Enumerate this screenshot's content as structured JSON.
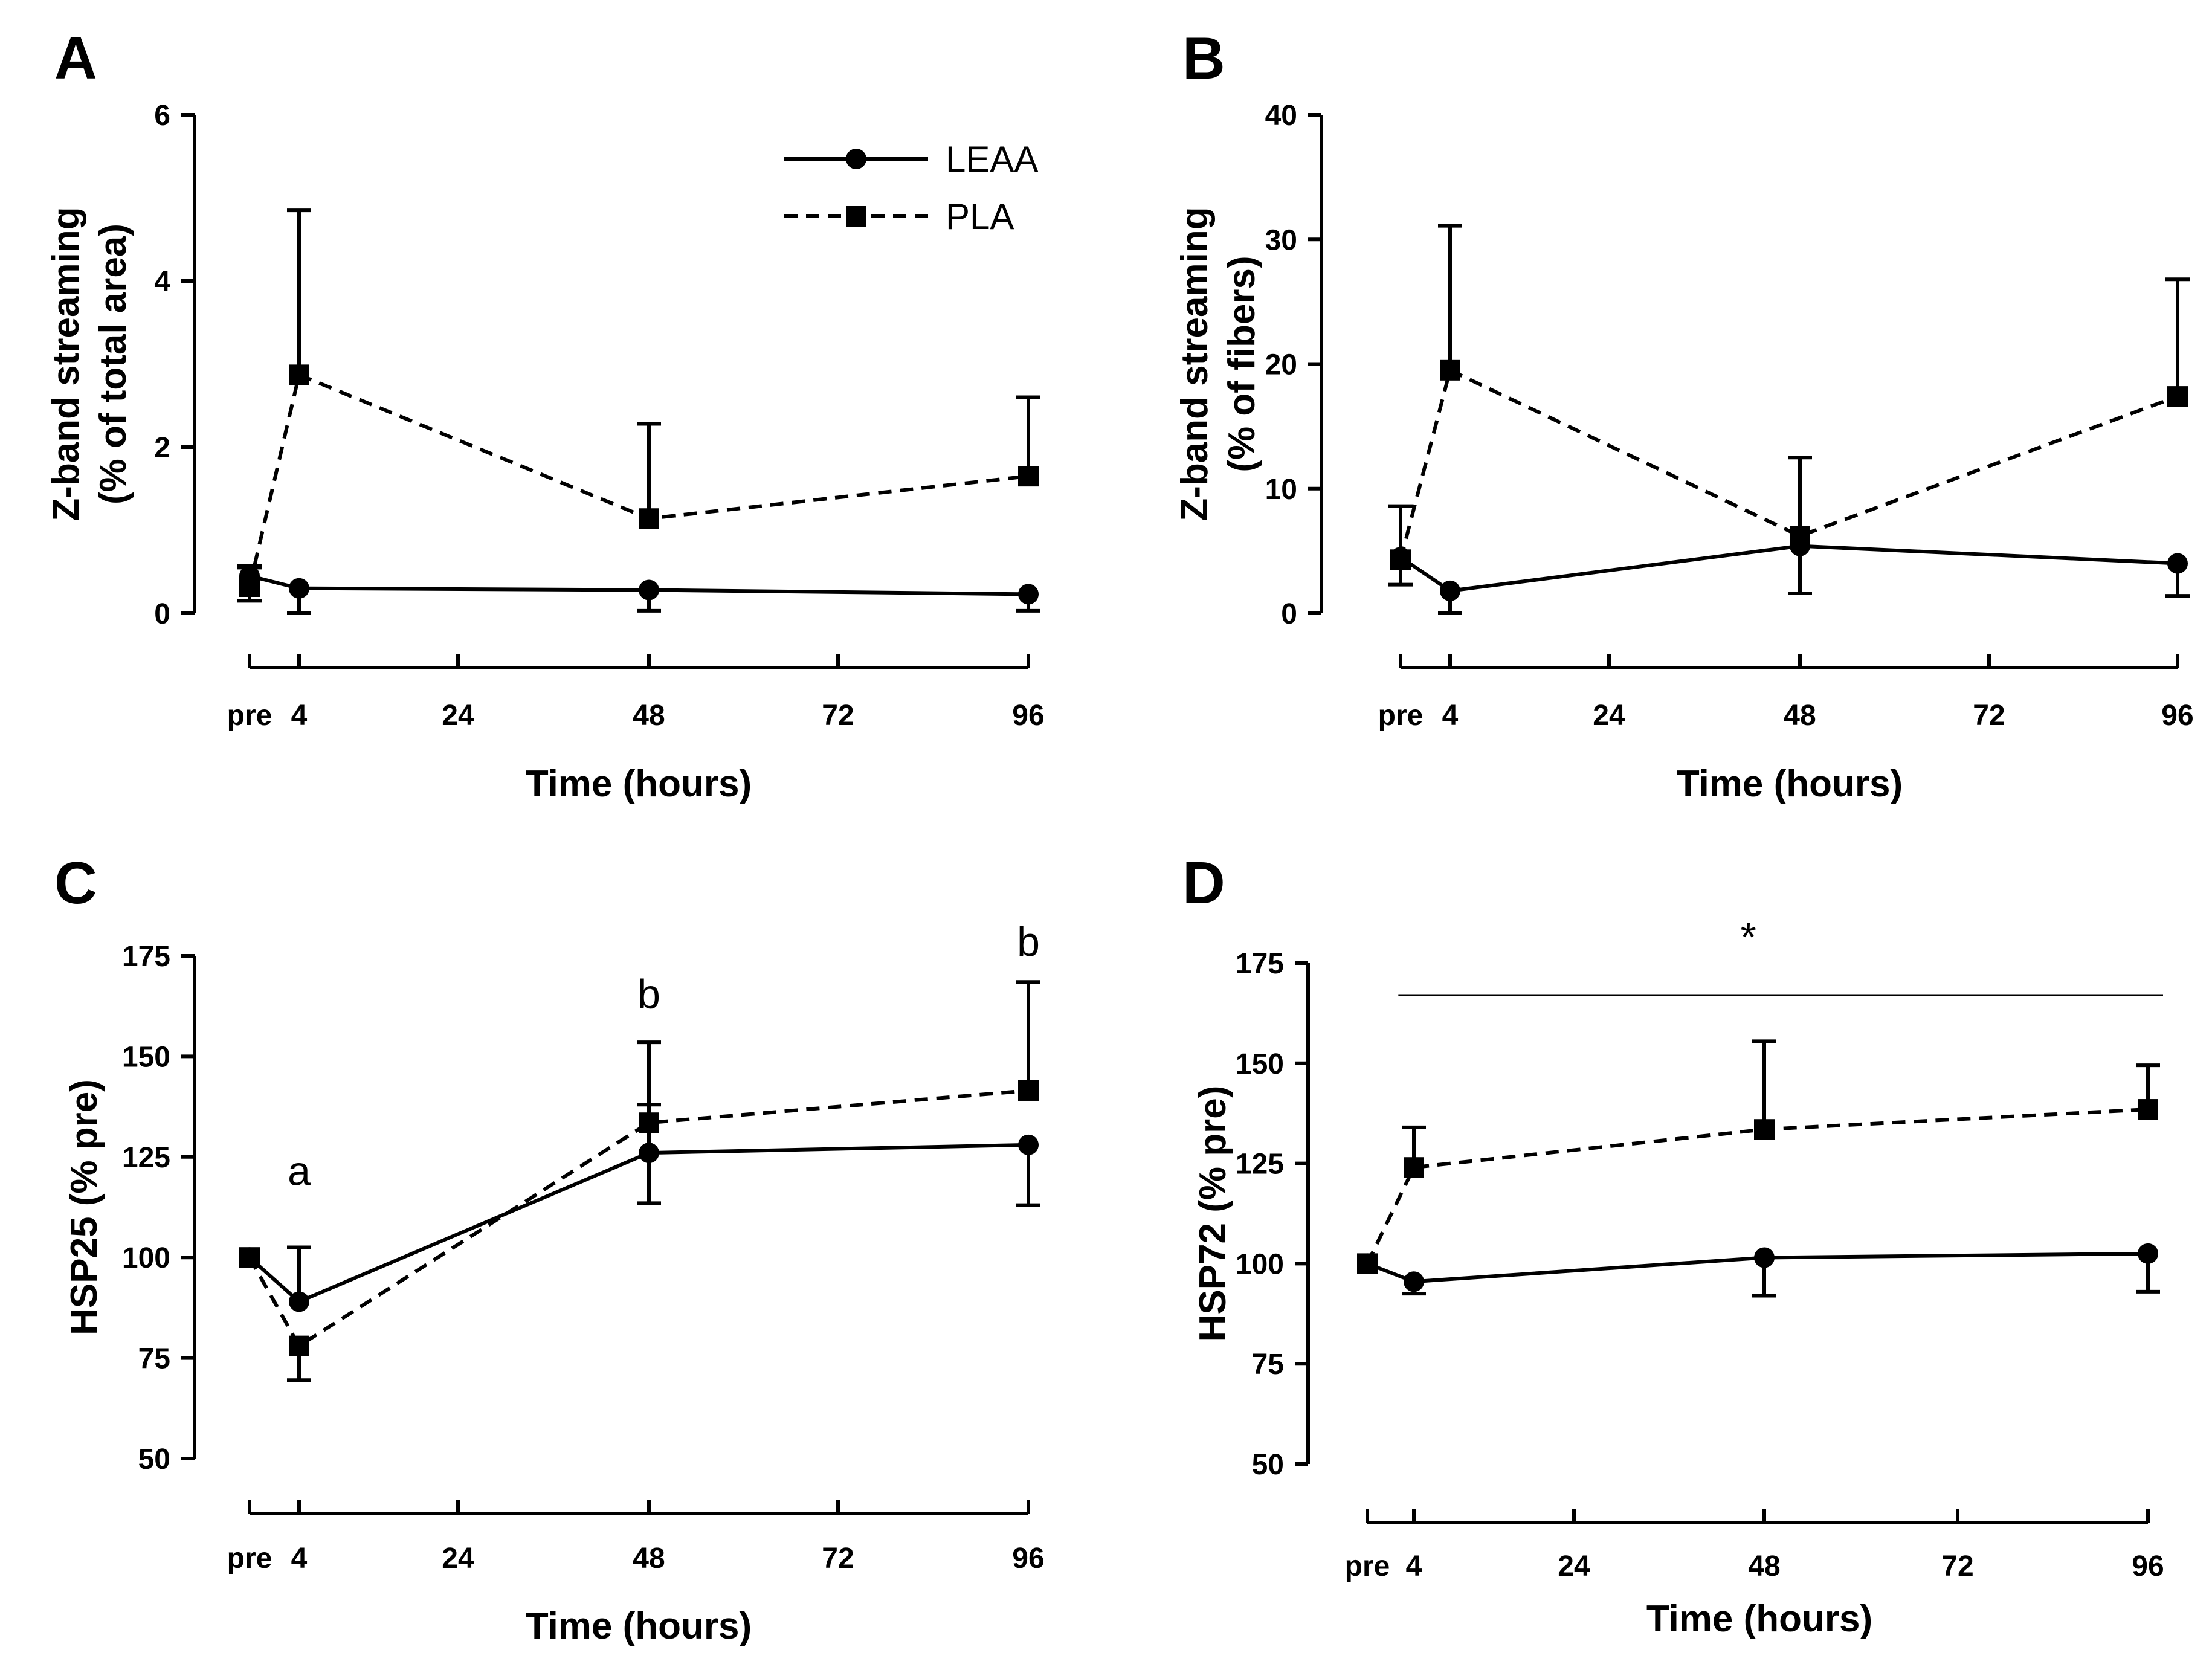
{
  "chart_data": [
    {
      "panel": "A",
      "type": "line",
      "ylabel_line1": "Z-band streaming",
      "ylabel_line2": "(% of total area)",
      "xlabel": "Time (hours)",
      "ylim": [
        0,
        6
      ],
      "yticks": [
        "0",
        "2",
        "4",
        "6"
      ],
      "yticks_values": [
        0,
        2,
        4,
        6
      ],
      "xticks": [
        "pre",
        "4",
        "24",
        "48",
        "72",
        "96"
      ],
      "xticks_values": [
        -2,
        4,
        24,
        48,
        72,
        96
      ],
      "xlim": [
        -2,
        96
      ],
      "legend": [
        {
          "label": "LEAA",
          "marker": "circle",
          "line": "solid"
        },
        {
          "label": "PLA",
          "marker": "square",
          "line": "dashed"
        }
      ],
      "series": [
        {
          "name": "LEAA",
          "marker": "circle",
          "line": "solid",
          "x": [
            -2,
            4,
            48,
            96
          ],
          "values": [
            0.45,
            0.3,
            0.28,
            0.23
          ],
          "err_up": [
            0.1,
            0,
            0,
            0
          ],
          "err_down": [
            0.3,
            0.3,
            0.25,
            0.2
          ]
        },
        {
          "name": "PLA",
          "marker": "square",
          "line": "dashed",
          "x": [
            -2,
            4,
            48,
            96
          ],
          "values": [
            0.32,
            2.87,
            1.14,
            1.65
          ],
          "err_up": [
            0.25,
            1.98,
            1.14,
            0.95
          ],
          "err_down": [
            0,
            0,
            0,
            0
          ]
        }
      ],
      "annotations": []
    },
    {
      "panel": "B",
      "type": "line",
      "ylabel_line1": "Z-band streaming",
      "ylabel_line2": "(% of fibers)",
      "xlabel": "Time (hours)",
      "ylim": [
        0,
        40
      ],
      "yticks": [
        "0",
        "10",
        "20",
        "30",
        "40"
      ],
      "yticks_values": [
        0,
        10,
        20,
        30,
        40
      ],
      "xticks": [
        "pre",
        "4",
        "24",
        "48",
        "72",
        "96"
      ],
      "xticks_values": [
        -2,
        4,
        24,
        48,
        72,
        96
      ],
      "xlim": [
        -2,
        96
      ],
      "legend": [],
      "series": [
        {
          "name": "LEAA",
          "marker": "circle",
          "line": "solid",
          "x": [
            -2,
            4,
            48,
            96
          ],
          "values": [
            4.5,
            1.8,
            5.4,
            4.0
          ],
          "err_up": [
            0,
            0,
            0,
            0
          ],
          "err_down": [
            2.2,
            1.8,
            3.8,
            2.6
          ]
        },
        {
          "name": "PLA",
          "marker": "square",
          "line": "dashed",
          "x": [
            -2,
            4,
            48,
            96
          ],
          "values": [
            4.3,
            19.5,
            6.2,
            17.4
          ],
          "err_up": [
            4.3,
            11.6,
            6.3,
            9.4
          ],
          "err_down": [
            0,
            0,
            0,
            0
          ]
        }
      ],
      "annotations": []
    },
    {
      "panel": "C",
      "type": "line",
      "ylabel_line1": "HSP25 (% pre)",
      "ylabel_line2": "",
      "xlabel": "Time (hours)",
      "ylim": [
        50,
        175
      ],
      "yticks": [
        "50",
        "75",
        "100",
        "125",
        "150",
        "175"
      ],
      "yticks_values": [
        50,
        75,
        100,
        125,
        150,
        175
      ],
      "xticks": [
        "pre",
        "4",
        "24",
        "48",
        "72",
        "96"
      ],
      "xticks_values": [
        -2,
        4,
        24,
        48,
        72,
        96
      ],
      "xlim": [
        -2,
        96
      ],
      "legend": [],
      "series": [
        {
          "name": "LEAA",
          "marker": "circle",
          "line": "solid",
          "x": [
            -2,
            4,
            48,
            96
          ],
          "values": [
            100,
            89,
            126,
            128
          ],
          "err_up": [
            0,
            13.5,
            12,
            0
          ],
          "err_down": [
            0,
            0,
            12.5,
            15
          ]
        },
        {
          "name": "PLA",
          "marker": "square",
          "line": "dashed",
          "x": [
            -2,
            4,
            48,
            96
          ],
          "values": [
            100,
            78,
            133.5,
            141.5
          ],
          "err_up": [
            0,
            0,
            20,
            27
          ],
          "err_down": [
            0,
            8.5,
            0,
            0
          ]
        }
      ],
      "annotations": [
        {
          "text": "a",
          "x": 4,
          "y": 118
        },
        {
          "text": "b",
          "x": 48,
          "y": 162
        },
        {
          "text": "b",
          "x": 96,
          "y": 175
        }
      ]
    },
    {
      "panel": "D",
      "type": "line",
      "ylabel_line1": "HSP72 (% pre)",
      "ylabel_line2": "",
      "xlabel": "Time (hours)",
      "ylim": [
        50,
        175
      ],
      "yticks": [
        "50",
        "75",
        "100",
        "125",
        "150",
        "175"
      ],
      "yticks_values": [
        50,
        75,
        100,
        125,
        150,
        175
      ],
      "xticks": [
        "pre",
        "4",
        "24",
        "48",
        "72",
        "96"
      ],
      "xticks_values": [
        -2,
        4,
        24,
        48,
        72,
        96
      ],
      "xlim": [
        -2,
        96
      ],
      "legend": [],
      "series": [
        {
          "name": "LEAA",
          "marker": "circle",
          "line": "solid",
          "x": [
            -2,
            4,
            48,
            96
          ],
          "values": [
            100,
            95.5,
            101.5,
            102.5
          ],
          "err_up": [
            0,
            0,
            0,
            0
          ],
          "err_down": [
            0,
            3,
            9.5,
            9.5
          ]
        },
        {
          "name": "PLA",
          "marker": "square",
          "line": "dashed",
          "x": [
            -2,
            4,
            48,
            96
          ],
          "values": [
            100,
            124,
            133.5,
            138.5
          ],
          "err_up": [
            0,
            10,
            22,
            11
          ],
          "err_down": [
            0,
            0,
            0,
            0
          ]
        }
      ],
      "annotations": [
        {
          "text": "*",
          "x": 46,
          "y": 178
        }
      ],
      "significance_line": {
        "x_from": 2,
        "x_to": 96,
        "y": 167
      }
    }
  ]
}
